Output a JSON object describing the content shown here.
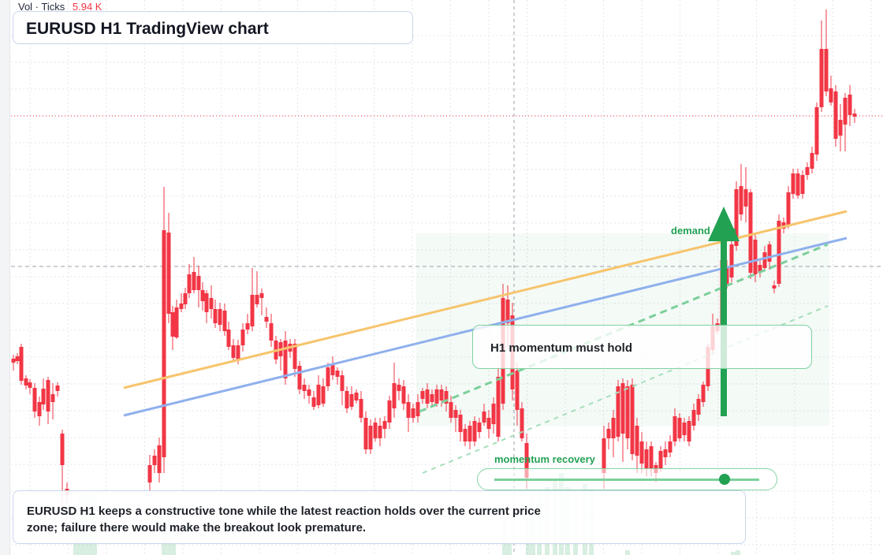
{
  "header": {
    "indicator_name": "Vol · Ticks",
    "indicator_value": "5.94 K"
  },
  "title": "EURUSD H1 TradingView chart",
  "callout": "H1 momentum must hold",
  "zone_label": "demand zone",
  "momentum_label": "momentum recovery",
  "momentum_slider": {
    "value": 0.87
  },
  "note": "EURUSD H1 keeps a constructive tone while the latest reaction holds over the current price zone; failure there would make the breakout look premature.",
  "colors": {
    "bull": "#22a153",
    "bear": "#f23645",
    "trend_orange": "#f7c46c",
    "trend_blue": "#8fb0ee",
    "grid": "#e3e6ec"
  }
}
